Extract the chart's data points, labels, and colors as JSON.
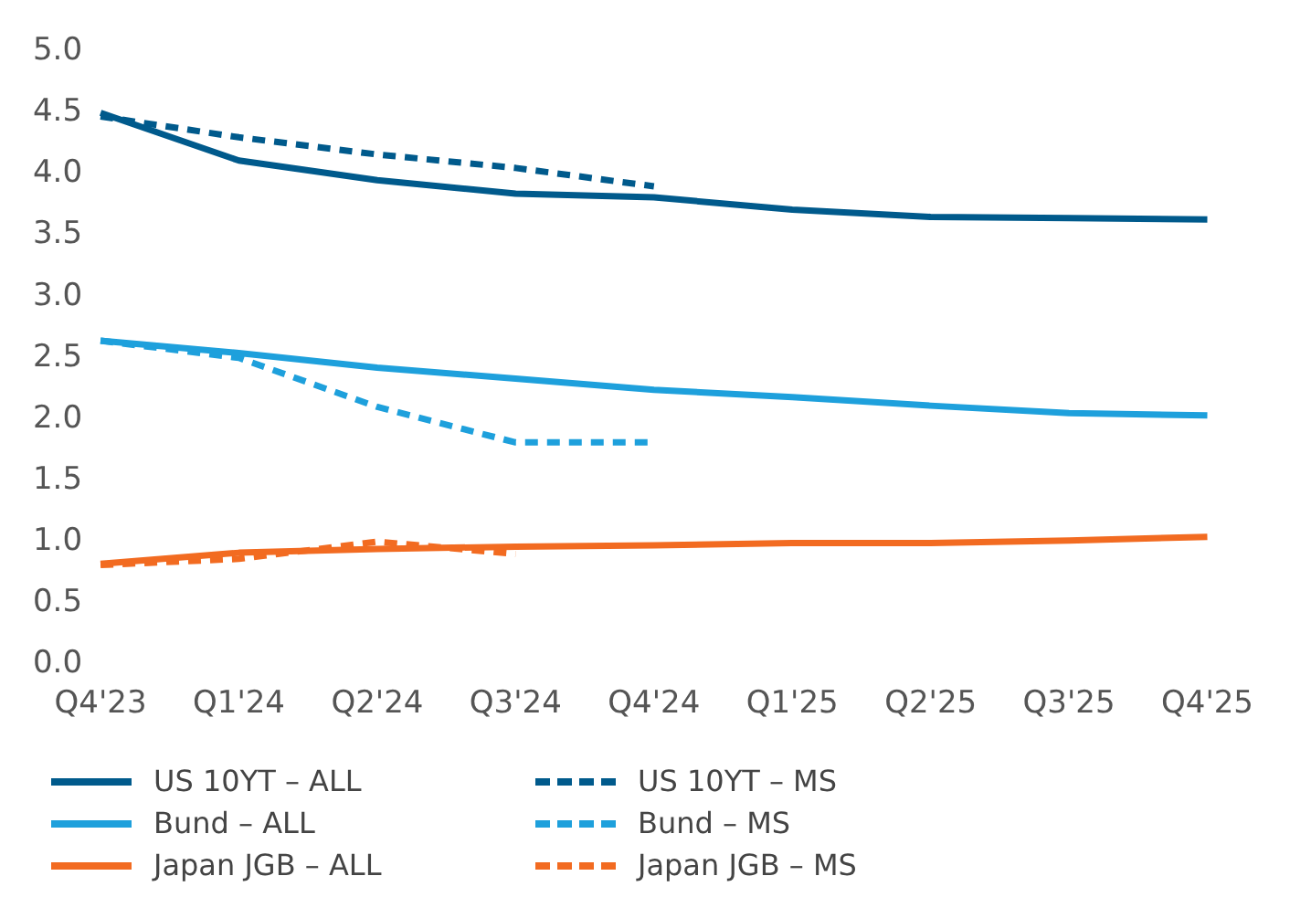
{
  "chart_data": {
    "type": "line",
    "categories": [
      "Q4'23",
      "Q1'24",
      "Q2'24",
      "Q3'24",
      "Q4'24",
      "Q1'25",
      "Q2'25",
      "Q3'25",
      "Q4'25"
    ],
    "ylim": [
      0,
      5
    ],
    "yticks": [
      {
        "value": 0,
        "label": "0.0"
      },
      {
        "value": 0.5,
        "label": "0.5"
      },
      {
        "value": 1,
        "label": "1.0"
      },
      {
        "value": 1.5,
        "label": "1.5"
      },
      {
        "value": 2,
        "label": "2.0"
      },
      {
        "value": 2.5,
        "label": "2.5"
      },
      {
        "value": 3,
        "label": "3.0"
      },
      {
        "value": 3.5,
        "label": "3.5"
      },
      {
        "value": 4,
        "label": "4.0"
      },
      {
        "value": 4.5,
        "label": "4.5"
      },
      {
        "value": 5,
        "label": "5.0"
      }
    ],
    "grid": false,
    "legend": "bottom",
    "marker": "none",
    "series": [
      {
        "name": "US 10YT – ALL",
        "color": "#005a8c",
        "line_style": "solid",
        "values": [
          4.5,
          4.11,
          3.95,
          3.84,
          3.81,
          3.71,
          3.65,
          3.64,
          3.63
        ]
      },
      {
        "name": "US 10YT – MS",
        "color": "#005a8c",
        "line_style": "dashed",
        "values": [
          4.47,
          4.3,
          4.16,
          4.05,
          3.9,
          null,
          null,
          null,
          null
        ]
      },
      {
        "name": "Bund – ALL",
        "color": "#1ea0dc",
        "line_style": "solid",
        "values": [
          2.64,
          2.54,
          2.42,
          2.33,
          2.24,
          2.18,
          2.11,
          2.05,
          2.03
        ]
      },
      {
        "name": "Bund – MS",
        "color": "#1ea0dc",
        "line_style": "dashed",
        "values": [
          2.64,
          2.5,
          2.1,
          1.81,
          1.81,
          null,
          null,
          null,
          null
        ]
      },
      {
        "name": "Japan JGB – ALL",
        "color": "#f26b21",
        "line_style": "solid",
        "values": [
          0.82,
          0.91,
          0.94,
          0.96,
          0.97,
          0.99,
          0.99,
          1.01,
          1.04
        ]
      },
      {
        "name": "Japan JGB – MS",
        "color": "#f26b21",
        "line_style": "dashed",
        "values": [
          0.81,
          0.86,
          1.0,
          0.9,
          null,
          null,
          null,
          null,
          null
        ]
      }
    ]
  }
}
